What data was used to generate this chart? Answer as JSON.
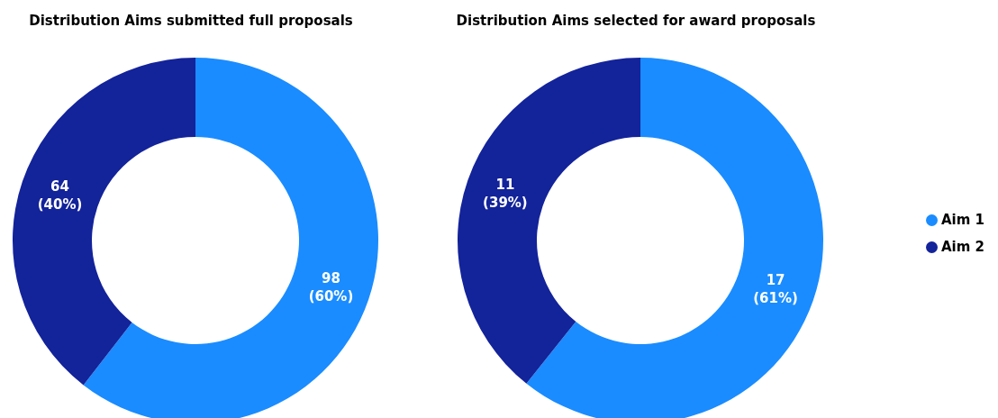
{
  "chart_data": [
    {
      "type": "donut",
      "title": "Distribution Aims submitted full proposals",
      "categories": [
        null,
        null
      ],
      "values": [
        98,
        64
      ],
      "colors": [
        "#1a8cff",
        "#13239a"
      ],
      "value_labels": [
        "98 (60%)",
        "64 (40%)"
      ]
    },
    {
      "type": "donut",
      "title": "Distribution Aims selected for award proposals",
      "categories": [
        "Aim 1",
        "Aim 2"
      ],
      "values": [
        17,
        11
      ],
      "colors": [
        "#1a8cff",
        "#13239a"
      ],
      "value_labels": [
        "17 (61%)",
        "11 (39%)"
      ],
      "legend": "right"
    }
  ]
}
